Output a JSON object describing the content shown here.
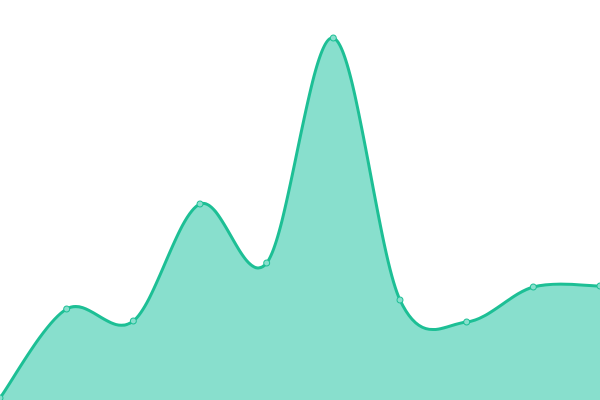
{
  "chart_data": {
    "type": "area",
    "title": "",
    "xlabel": "",
    "ylabel": "",
    "x": [
      0,
      1,
      2,
      3,
      4,
      5,
      6,
      7,
      8,
      9
    ],
    "values": [
      2,
      91,
      79,
      196,
      137,
      362,
      100,
      78,
      113,
      114
    ],
    "ylim": [
      0,
      400
    ],
    "grid": false,
    "legend": "none",
    "smooth": true,
    "colors": {
      "line": "#1dbf95",
      "fill": "#88dfcd",
      "marker_fill": "#88dfcd",
      "marker_stroke": "#1dbf95"
    }
  }
}
